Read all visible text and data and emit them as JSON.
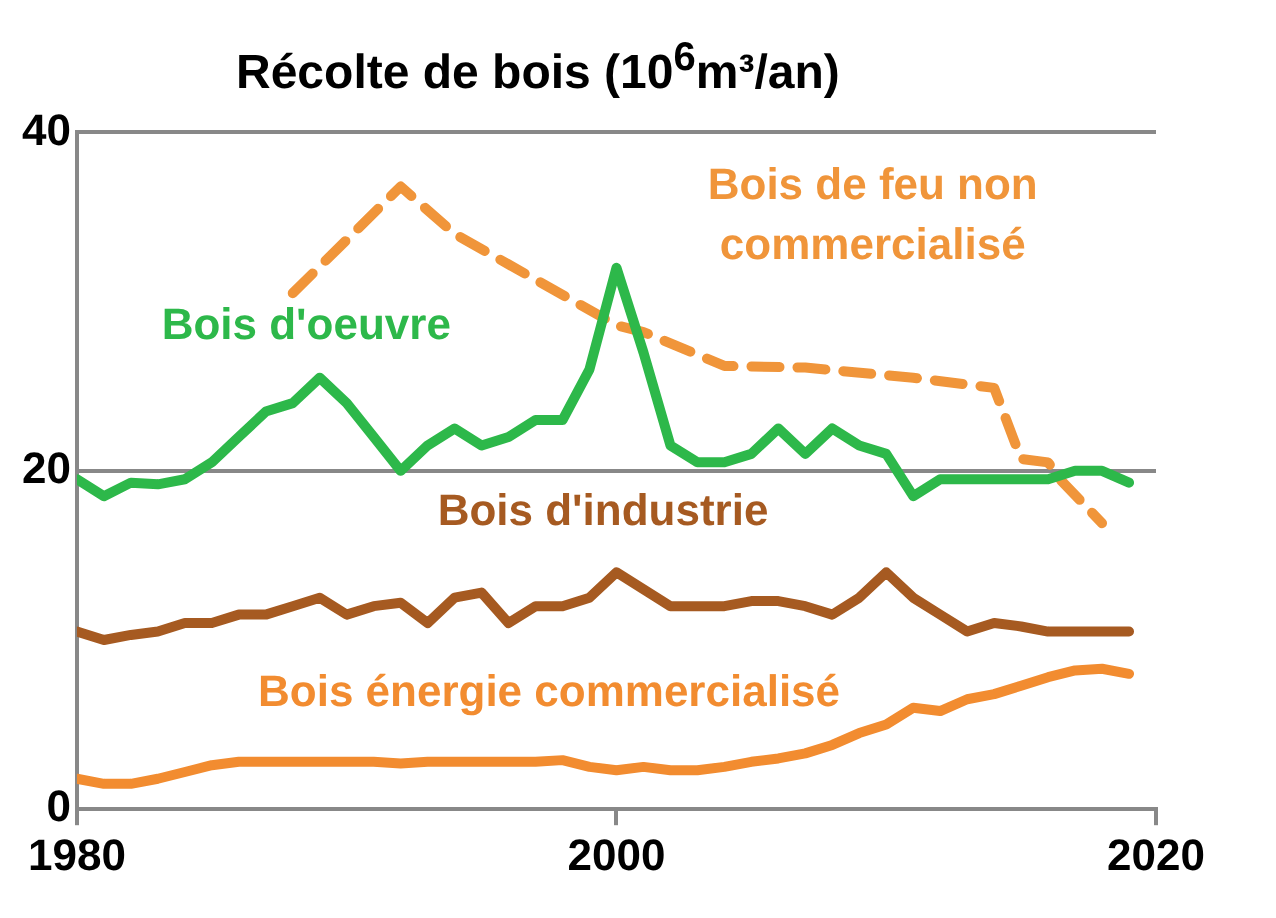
{
  "chart_data": {
    "type": "line",
    "title": "Récolte de bois (10$^{6}$m³/an)",
    "x": [
      1980,
      1981,
      1982,
      1983,
      1984,
      1985,
      1986,
      1987,
      1988,
      1989,
      1990,
      1991,
      1992,
      1993,
      1994,
      1995,
      1996,
      1997,
      1998,
      1999,
      2000,
      2001,
      2002,
      2003,
      2004,
      2005,
      2006,
      2007,
      2008,
      2009,
      2010,
      2011,
      2012,
      2013,
      2014,
      2015,
      2016,
      2017,
      2018,
      2019
    ],
    "series": [
      {
        "name": "Bois d'oeuvre",
        "color": "#2db84a",
        "values": [
          19.5,
          18.5,
          19.3,
          19.2,
          19.5,
          20.5,
          22,
          23.5,
          24,
          25.5,
          24,
          22,
          20,
          21.5,
          22.5,
          21.5,
          22,
          23,
          23,
          26,
          32,
          27,
          21.5,
          20.5,
          20.5,
          21,
          22.5,
          21,
          22.5,
          21.5,
          21,
          18.5,
          19.5,
          19.5,
          19.5,
          19.5,
          19.5,
          20,
          20,
          19.3
        ]
      },
      {
        "name": "Bois de feu non commercialisé",
        "color": "#f0953a",
        "line_style": "dashed",
        "x": [
          1988,
          1992,
          1994,
          1997,
          2000,
          2001,
          2004,
          2007,
          2011,
          2014,
          2015,
          2016,
          2016.5,
          2018
        ],
        "values": [
          30.5,
          36.8,
          34,
          31.3,
          28.6,
          28.2,
          26.2,
          26.1,
          25.5,
          24.9,
          20.7,
          20.5,
          19.4,
          16.9
        ]
      },
      {
        "name": "Bois d'industrie",
        "color": "#a65a21",
        "values": [
          10.5,
          10,
          10.3,
          10.5,
          11,
          11,
          11.5,
          11.5,
          12,
          12.5,
          11.5,
          12,
          12.2,
          11,
          12.5,
          12.8,
          11,
          12,
          12,
          12.5,
          14,
          13,
          12,
          12,
          12,
          12.3,
          12.3,
          12,
          11.5,
          12.5,
          14,
          12.5,
          11.5,
          10.5,
          11,
          10.8,
          10.5,
          10.5,
          10.5,
          10.5
        ]
      },
      {
        "name": "Bois énergie commercialisé",
        "color": "#f28c30",
        "values": [
          1.8,
          1.5,
          1.5,
          1.8,
          2.2,
          2.6,
          2.8,
          2.8,
          2.8,
          2.8,
          2.8,
          2.8,
          2.7,
          2.8,
          2.8,
          2.8,
          2.8,
          2.8,
          2.9,
          2.5,
          2.3,
          2.5,
          2.3,
          2.3,
          2.5,
          2.8,
          3,
          3.3,
          3.8,
          4.5,
          5,
          6,
          5.8,
          6.5,
          6.8,
          7.3,
          7.8,
          8.2,
          8.3,
          8
        ]
      }
    ],
    "xlim": [
      1980,
      2020
    ],
    "xticks": [
      1980,
      2000,
      2020
    ],
    "ylim": [
      0,
      40
    ],
    "yticks": [
      0,
      20,
      40
    ],
    "grid": "y",
    "legend": false,
    "marker": "none"
  }
}
